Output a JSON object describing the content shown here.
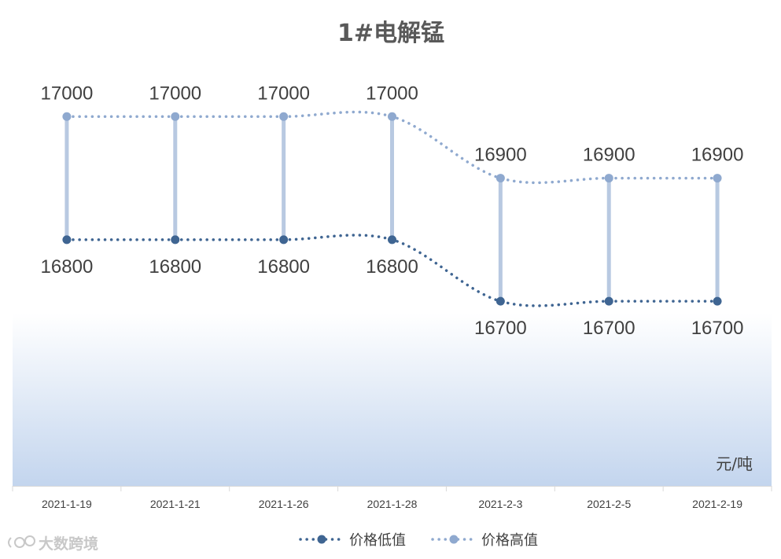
{
  "chart_data": {
    "type": "line",
    "title": "1#电解锰",
    "unit_label": "元/吨",
    "categories": [
      "2021-1-19",
      "2021-1-21",
      "2021-1-26",
      "2021-1-28",
      "2021-2-3",
      "2021-2-5",
      "2021-2-19"
    ],
    "series": [
      {
        "name": "价格低值",
        "values": [
          16800,
          16800,
          16800,
          16800,
          16700,
          16700,
          16700
        ],
        "color": "#3f6592",
        "label_position": "below"
      },
      {
        "name": "价格高值",
        "values": [
          17000,
          17000,
          17000,
          17000,
          16900,
          16900,
          16900
        ],
        "color": "#8fa9cf",
        "label_position": "above"
      }
    ],
    "high_low_lines": true,
    "high_low_line_color": "#b8c9e1",
    "line_style": "dotted",
    "smoothed": true,
    "legend_position": "bottom",
    "ylim": [
      16400,
      17100
    ],
    "grid": false,
    "background": "gradient white to light blue"
  },
  "watermark": {
    "text": "大数跨境"
  }
}
